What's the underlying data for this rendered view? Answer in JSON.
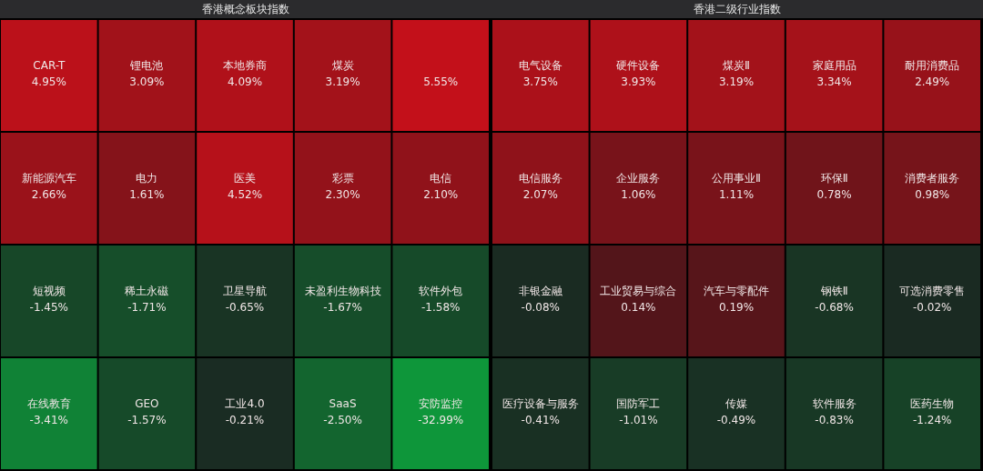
{
  "chart_data": [
    {
      "type": "other",
      "title": "香港概念板块指数",
      "categories": [
        "CAR-T",
        "锂电池",
        "本地券商",
        "煤炭",
        null,
        "新能源汽车",
        "电力",
        "医美",
        "彩票",
        "电信",
        "短视频",
        "稀土永磁",
        "卫星导航",
        "未盈利生物科技",
        "软件外包",
        "在线教育",
        "GEO",
        "工业4.0",
        "SaaS",
        "安防监控"
      ],
      "values": [
        4.95,
        3.09,
        4.09,
        3.19,
        5.55,
        2.66,
        1.61,
        4.52,
        2.3,
        2.1,
        -1.45,
        -1.71,
        -0.65,
        -1.67,
        -1.58,
        -3.41,
        -1.57,
        -0.21,
        -2.5,
        -32.99
      ],
      "value_labels": [
        "4.95%",
        "3.09%",
        "4.09%",
        "3.19%",
        "5.55%",
        "2.66%",
        "1.61%",
        "4.52%",
        "2.30%",
        "2.10%",
        "-1.45%",
        "-1.71%",
        "-0.65%",
        "-1.67%",
        "-1.58%",
        "-3.41%",
        "-1.57%",
        "-0.21%",
        "-2.50%",
        "-32.99%"
      ]
    },
    {
      "type": "other",
      "title": "香港二级行业指数",
      "categories": [
        "电气设备",
        "硬件设备",
        "煤炭Ⅱ",
        "家庭用品",
        "耐用消费品",
        "电信服务",
        "企业服务",
        "公用事业Ⅱ",
        "环保Ⅱ",
        "消费者服务",
        "非银金融",
        "工业贸易与综合",
        "汽车与零配件",
        "钢铁Ⅱ",
        "可选消费零售",
        "医疗设备与服务",
        "国防军工",
        "传媒",
        "软件服务",
        "医药生物"
      ],
      "values": [
        3.75,
        3.93,
        3.19,
        3.34,
        2.49,
        2.07,
        1.06,
        1.11,
        0.78,
        0.98,
        -0.08,
        0.14,
        0.19,
        -0.68,
        -0.02,
        -0.41,
        -1.01,
        -0.49,
        -0.83,
        -1.24
      ],
      "value_labels": [
        "3.75%",
        "3.93%",
        "3.19%",
        "3.34%",
        "2.49%",
        "2.07%",
        "1.06%",
        "1.11%",
        "0.78%",
        "0.98%",
        "-0.08%",
        "0.14%",
        "0.19%",
        "-0.68%",
        "-0.02%",
        "-0.41%",
        "-1.01%",
        "-0.49%",
        "-0.83%",
        "-1.24%"
      ]
    }
  ]
}
